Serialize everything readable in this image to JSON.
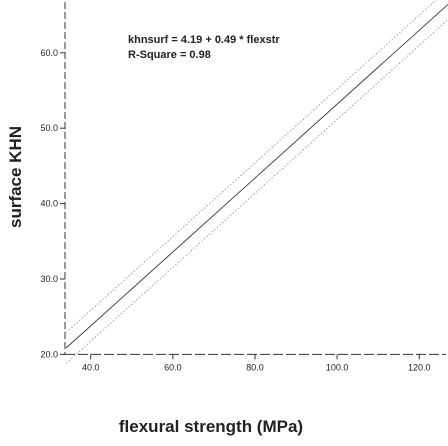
{
  "chart_data": {
    "type": "line",
    "xlabel": "flexural strength (MPa)",
    "ylabel": "surface KHN",
    "xlim": [
      33,
      127
    ],
    "ylim": [
      17,
      67
    ],
    "x_ticks": [
      40,
      60,
      80,
      100,
      120
    ],
    "x_tick_labels": [
      "40.0",
      "60.0",
      "80.0",
      "100.0",
      "120.0"
    ],
    "y_ticks": [
      20,
      30,
      40,
      50,
      60
    ],
    "y_tick_labels": [
      "20.0",
      "30.0",
      "40.0",
      "50.0",
      "60.0"
    ],
    "grid": false,
    "annotations": [
      "khnsurf = 4.19 + 0.49 * flexstr",
      "R-Square = 0.98"
    ],
    "series": [
      {
        "style": "solid",
        "x": [
          34,
          127
        ],
        "y": [
          20.85,
          66.42
        ]
      },
      {
        "style": "dotted",
        "x": [
          34,
          127
        ],
        "y": [
          18.8,
          64.4
        ]
      },
      {
        "style": "dotted",
        "x": [
          34,
          127
        ],
        "y": [
          22.9,
          68.4
        ]
      }
    ]
  }
}
